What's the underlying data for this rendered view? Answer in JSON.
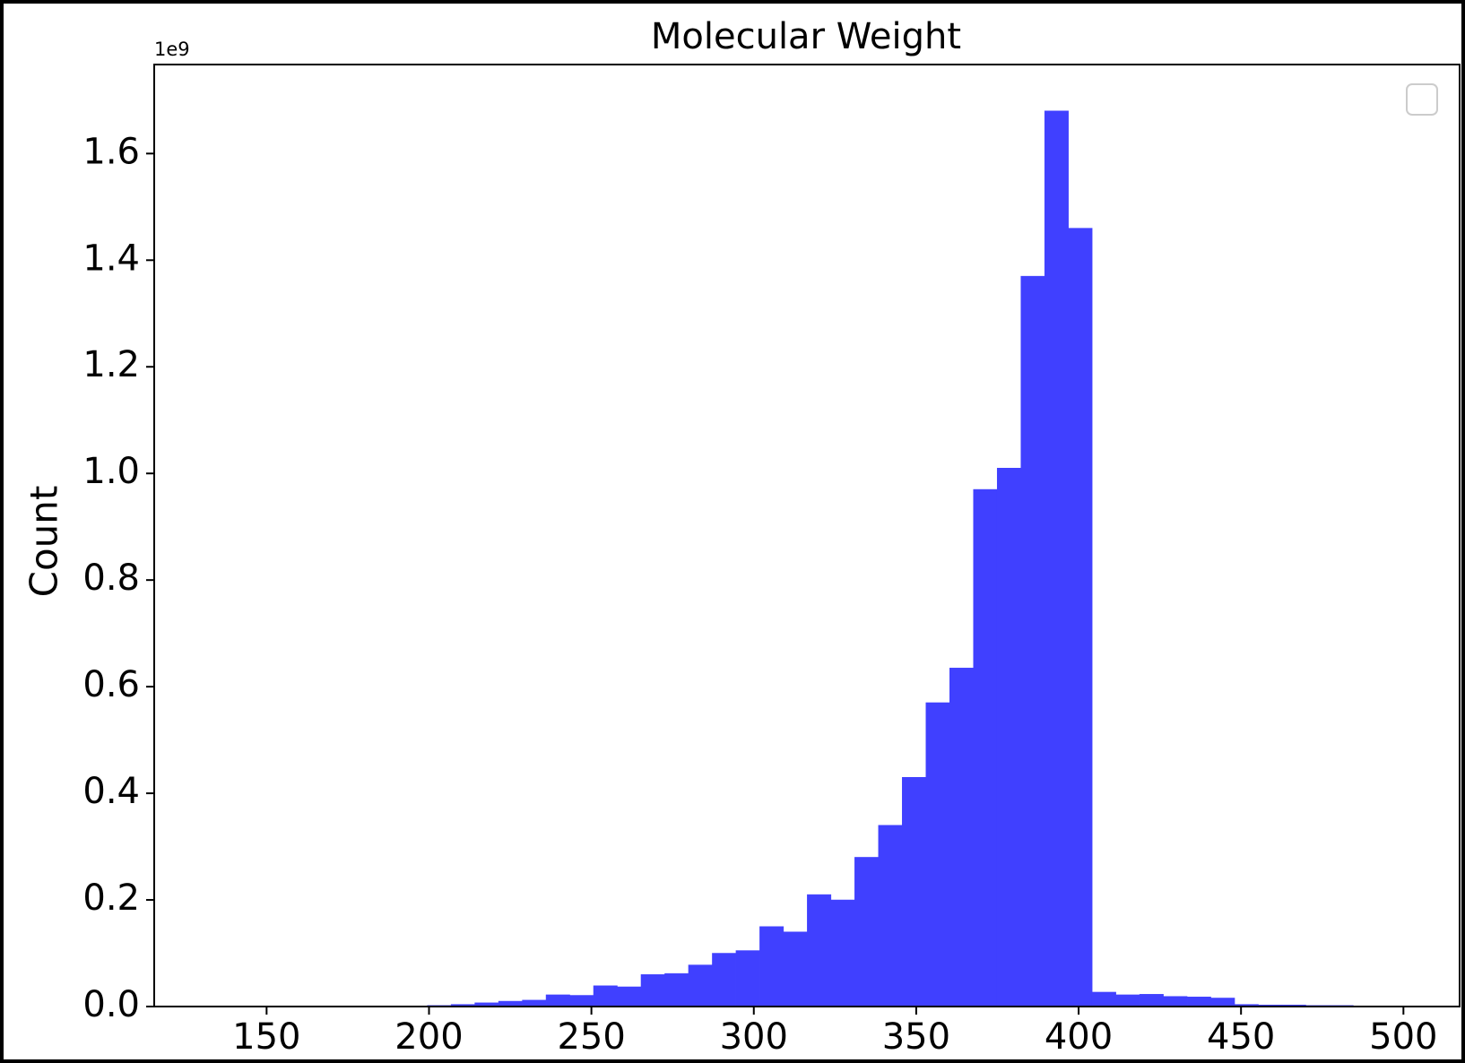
{
  "chart_data": {
    "type": "histogram",
    "title": "Molecular Weight",
    "y_label": "Count",
    "y_offset_label": "1e9",
    "bins": [
      133.7,
      141.01,
      148.32,
      155.63,
      162.94,
      170.25,
      177.56,
      184.87,
      192.18,
      199.49,
      206.8,
      214.11,
      221.42,
      228.73,
      236.04,
      243.35,
      250.66,
      257.97,
      265.28,
      272.59,
      279.9,
      287.21,
      294.52,
      301.83,
      309.14,
      316.45,
      323.76,
      331.07,
      338.38,
      345.69,
      353.0,
      360.31,
      367.62,
      374.93,
      382.24,
      389.55,
      396.86,
      404.17,
      411.48,
      418.79,
      426.1,
      433.41,
      440.72,
      448.03,
      455.34,
      462.65,
      469.96,
      477.27,
      484.58,
      491.89,
      499.2
    ],
    "values": [
      0,
      0,
      0,
      0,
      0,
      0,
      0,
      0,
      0,
      0.002,
      0.004,
      0.007,
      0.01,
      0.012,
      0.022,
      0.021,
      0.039,
      0.037,
      0.06,
      0.062,
      0.078,
      0.1,
      0.105,
      0.15,
      0.14,
      0.21,
      0.2,
      0.28,
      0.34,
      0.43,
      0.57,
      0.635,
      0.97,
      1.01,
      1.37,
      1.68,
      1.46,
      0.027,
      0.022,
      0.023,
      0.019,
      0.018,
      0.016,
      0.004,
      0.003,
      0.003,
      0.002,
      0.002,
      0.001,
      0.001
    ],
    "color": "#4040ff",
    "y_label_color": "#4040ff",
    "xlim": [
      115.4,
      517.3
    ],
    "xticks": [
      150,
      200,
      250,
      300,
      350,
      400,
      450,
      500
    ],
    "ylim": [
      0,
      1.767
    ],
    "yticks": [
      {
        "value": 0,
        "label": "0.0"
      },
      0.2,
      0.4,
      0.6,
      0.8,
      {
        "value": 1,
        "label": "1.0"
      },
      1.2,
      1.4,
      1.6
    ],
    "grid": false
  }
}
